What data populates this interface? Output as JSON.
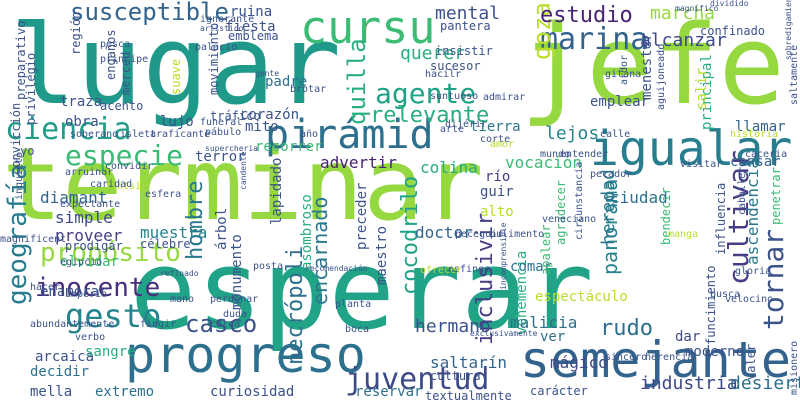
{
  "words": [
    {
      "text": "terminar",
      "color": "#95d840"
    },
    {
      "text": "esperar",
      "color": "#20a386"
    },
    {
      "text": "lugar",
      "color": "#1f9a8a"
    },
    {
      "text": "jefe",
      "color": "#95d840"
    },
    {
      "text": "semejante",
      "color": "#33638d"
    },
    {
      "text": "progreso",
      "color": "#2d708e"
    },
    {
      "text": "igualar",
      "color": "#287d8e"
    },
    {
      "text": "pirámid",
      "color": "#2d708e"
    },
    {
      "text": "cursu",
      "color": "#3cbb75"
    },
    {
      "text": "ciencia",
      "color": "#1f9e89"
    },
    {
      "text": "susceptible",
      "color": "#32648e"
    },
    {
      "text": "geografía",
      "color": "#287c8e"
    },
    {
      "text": "juventud",
      "color": "#3e4989"
    },
    {
      "text": "gesto",
      "color": "#25858e"
    },
    {
      "text": "propósito",
      "color": "#95d840"
    },
    {
      "text": "inocente",
      "color": "#472d7b"
    },
    {
      "text": "marina",
      "color": "#33638d"
    },
    {
      "text": "agente",
      "color": "#20a386"
    },
    {
      "text": "especie",
      "color": "#3cbb75"
    },
    {
      "text": "relevante",
      "color": "#29af7f"
    },
    {
      "text": "cultivar",
      "color": "#433e85"
    },
    {
      "text": "tornar",
      "color": "#3b528b"
    },
    {
      "text": "hombre",
      "color": "#2a788e"
    },
    {
      "text": "gozar",
      "color": "#b8de29"
    },
    {
      "text": "quilla",
      "color": "#29af7f"
    },
    {
      "text": "casco",
      "color": "#3b528b"
    },
    {
      "text": "estudio",
      "color": "#482475"
    },
    {
      "text": "inclusivir",
      "color": "#433e85"
    },
    {
      "text": "encarnado",
      "color": "#2a788e"
    },
    {
      "text": "cocodrilo",
      "color": "#20a386"
    },
    {
      "text": "necrópoli",
      "color": "#2d708e"
    },
    {
      "text": "rudo",
      "color": "#2d708e"
    },
    {
      "text": "panorama",
      "color": "#25858e"
    },
    {
      "text": "heredad",
      "color": "#2a788e"
    },
    {
      "text": "mental",
      "color": "#3b528b"
    },
    {
      "text": "querer",
      "color": "#27ad81"
    },
    {
      "text": "marcha",
      "color": "#95d840"
    },
    {
      "text": "alcanzar",
      "color": "#3e4989"
    },
    {
      "text": "lejos",
      "color": "#25858e"
    },
    {
      "text": "hermano",
      "color": "#3b528b"
    },
    {
      "text": "ascendencia",
      "color": "#2a788e"
    },
    {
      "text": "industria",
      "color": "#3e4989"
    },
    {
      "text": "desierto",
      "color": "#2d708e"
    },
    {
      "text": "saltarín",
      "color": "#32648e"
    },
    {
      "text": "mágico",
      "color": "#3e4989"
    },
    {
      "text": "vehemencia",
      "color": "#29af7f"
    },
    {
      "text": "malicia",
      "color": "#2d708e"
    },
    {
      "text": "espectáculo",
      "color": "#b8de29"
    },
    {
      "text": "doctor",
      "color": "#32648e"
    },
    {
      "text": "ciudad",
      "color": "#2d708e"
    },
    {
      "text": "diamant",
      "color": "#32648e"
    },
    {
      "text": "simple",
      "color": "#3e4989"
    },
    {
      "text": "proveer",
      "color": "#433e85"
    },
    {
      "text": "muestra",
      "color": "#25858e"
    },
    {
      "text": "colina",
      "color": "#27ad81"
    },
    {
      "text": "vocación",
      "color": "#3cbb75"
    },
    {
      "text": "advertir",
      "color": "#481f70"
    },
    {
      "text": "corazón",
      "color": "#3b528b"
    },
    {
      "text": "padre",
      "color": "#2d708e"
    },
    {
      "text": "lujo",
      "color": "#3b528b"
    },
    {
      "text": "obra",
      "color": "#3b528b"
    },
    {
      "text": "traza",
      "color": "#3b528b"
    },
    {
      "text": "terror",
      "color": "#3b528b"
    },
    {
      "text": "emplear",
      "color": "#3b528b"
    },
    {
      "text": "llamar",
      "color": "#32648e"
    },
    {
      "text": "cansar",
      "color": "#32648e"
    },
    {
      "text": "tierra",
      "color": "#2a788e"
    },
    {
      "text": "guir",
      "color": "#3b528b"
    },
    {
      "text": "río",
      "color": "#433e85"
    },
    {
      "text": "alto",
      "color": "#b8de29"
    },
    {
      "text": "preceder",
      "color": "#3b528b"
    },
    {
      "text": "maestro",
      "color": "#3b528b"
    },
    {
      "text": "comar",
      "color": "#2d708e"
    },
    {
      "text": "ver",
      "color": "#2d708e"
    },
    {
      "text": "dar",
      "color": "#3e4989"
    },
    {
      "text": "moderno",
      "color": "#3b528b"
    },
    {
      "text": "reservar",
      "color": "#2d708e"
    },
    {
      "text": "curiosidad",
      "color": "#3b528b"
    },
    {
      "text": "extremo",
      "color": "#2d708e"
    },
    {
      "text": "mella",
      "color": "#3b528b"
    },
    {
      "text": "decidir",
      "color": "#2d708e"
    },
    {
      "text": "arcaica",
      "color": "#3b528b"
    },
    {
      "text": "sangre",
      "color": "#27ad81"
    },
    {
      "text": "enamorar",
      "color": "#3b528b"
    },
    {
      "text": "olvidar",
      "color": "#3cbb75"
    },
    {
      "text": "monumento",
      "color": "#3b528b"
    },
    {
      "text": "árbol",
      "color": "#3b528b"
    },
    {
      "text": "lapidado",
      "color": "#3b528b"
    },
    {
      "text": "asombroso",
      "color": "#29af7f"
    },
    {
      "text": "recorrer",
      "color": "#3cbb75"
    },
    {
      "text": "mito",
      "color": "#3b528b"
    },
    {
      "text": "ruina",
      "color": "#3b528b"
    },
    {
      "text": "fiesta",
      "color": "#3b528b"
    },
    {
      "text": "emblema",
      "color": "#3b528b"
    },
    {
      "text": "insistir",
      "color": "#3b528b"
    },
    {
      "text": "sucesor",
      "color": "#3b528b"
    },
    {
      "text": "pantera",
      "color": "#3b528b"
    },
    {
      "text": "confinado",
      "color": "#3b528b"
    },
    {
      "text": "menester",
      "color": "#3b528b"
    },
    {
      "text": "principal",
      "color": "#29af7f"
    },
    {
      "text": "salir",
      "color": "#b8de29"
    },
    {
      "text": "región",
      "color": "#3b528b"
    },
    {
      "text": "privilegio",
      "color": "#3b528b"
    },
    {
      "text": "preparativo",
      "color": "#3b528b"
    },
    {
      "text": "merced",
      "color": "#3b528b"
    },
    {
      "text": "engaños",
      "color": "#3b528b"
    },
    {
      "text": "acento",
      "color": "#3b528b"
    },
    {
      "text": "tráfico",
      "color": "#3b528b"
    },
    {
      "text": "bendecir",
      "color": "#3cbb75"
    },
    {
      "text": "agradecer",
      "color": "#3cbb75"
    },
    {
      "text": "apalear",
      "color": "#3cbb75"
    },
    {
      "text": "penetrar",
      "color": "#3cbb75"
    },
    {
      "text": "influencia",
      "color": "#3b528b"
    },
    {
      "text": "funcimiento",
      "color": "#3b528b"
    },
    {
      "text": "valer",
      "color": "#3b528b"
    },
    {
      "text": "misionero",
      "color": "#3b528b"
    },
    {
      "text": "saltamente",
      "color": "#3b528b"
    },
    {
      "text": "convicción",
      "color": "#3b528b"
    },
    {
      "text": "yo",
      "color": "#3b528b"
    },
    {
      "text": "suave",
      "color": "#b8de29"
    },
    {
      "text": "movimiento",
      "color": "#3b528b"
    },
    {
      "text": "soberano",
      "color": "#3b528b"
    },
    {
      "text": "isleta",
      "color": "#3b528b"
    },
    {
      "text": "traficante",
      "color": "#3b528b"
    },
    {
      "text": "funeral",
      "color": "#3b528b"
    },
    {
      "text": "pábulo",
      "color": "#3b528b"
    },
    {
      "text": "supercheria",
      "color": "#3b528b"
    },
    {
      "text": "convidir",
      "color": "#3b528b"
    },
    {
      "text": "arruinar",
      "color": "#3b528b"
    },
    {
      "text": "fintsir",
      "color": "#b8de29"
    },
    {
      "text": "textualmente",
      "color": "#3b528b"
    },
    {
      "text": "carácter",
      "color": "#3b528b"
    },
    {
      "text": "cultura",
      "color": "#3b528b"
    },
    {
      "text": "historia",
      "color": "#b8de29"
    },
    {
      "text": "caceria",
      "color": "#3b528b"
    },
    {
      "text": "visitar",
      "color": "#3b528b"
    },
    {
      "text": "amor",
      "color": "#b8de29"
    },
    {
      "text": "mundo",
      "color": "#3b528b"
    },
    {
      "text": "pecador",
      "color": "#3b528b"
    },
    {
      "text": "calle",
      "color": "#3b528b"
    },
    {
      "text": "corte",
      "color": "#3b528b"
    },
    {
      "text": "esfera",
      "color": "#3b528b"
    },
    {
      "text": "expectante",
      "color": "#3b528b"
    },
    {
      "text": "prodigar",
      "color": "#3b528b"
    },
    {
      "text": "célebre",
      "color": "#3b528b"
    },
    {
      "text": "refinado",
      "color": "#3b528b"
    },
    {
      "text": "mano",
      "color": "#3b528b"
    },
    {
      "text": "perdonar",
      "color": "#3b528b"
    },
    {
      "text": "planta",
      "color": "#3b528b"
    },
    {
      "text": "boca",
      "color": "#3b528b"
    },
    {
      "text": "sincero",
      "color": "#3b528b"
    },
    {
      "text": "herencia",
      "color": "#3b528b"
    },
    {
      "text": "busca",
      "color": "#3b528b"
    },
    {
      "text": "gloria",
      "color": "#3b528b"
    },
    {
      "text": "manga",
      "color": "#b8de29"
    },
    {
      "text": "velocino",
      "color": "#3b528b"
    },
    {
      "text": "posta",
      "color": "#3b528b"
    },
    {
      "text": "recomendación",
      "color": "#3b528b"
    },
    {
      "text": "esfinge",
      "color": "#3b528b"
    },
    {
      "text": "ofrecer",
      "color": "#b8de29"
    },
    {
      "text": "pesca",
      "color": "#3b528b"
    },
    {
      "text": "principe",
      "color": "#3b528b"
    },
    {
      "text": "gente",
      "color": "#3b528b"
    },
    {
      "text": "brotar",
      "color": "#3b528b"
    },
    {
      "text": "hacilr",
      "color": "#3b528b"
    },
    {
      "text": "suntuoso",
      "color": "#3b528b"
    },
    {
      "text": "dijérir",
      "color": "#3b528b"
    },
    {
      "text": "gitana",
      "color": "#3b528b"
    },
    {
      "text": "admirar",
      "color": "#3b528b"
    },
    {
      "text": "ignorante",
      "color": "#3b528b"
    },
    {
      "text": "artístico",
      "color": "#3b528b"
    },
    {
      "text": "magnífico",
      "color": "#3b528b"
    },
    {
      "text": "dividido",
      "color": "#3b528b"
    },
    {
      "text": "sobredigamiento",
      "color": "#3b528b"
    },
    {
      "text": "aguijoneado",
      "color": "#3b528b"
    },
    {
      "text": "ardor",
      "color": "#3b528b"
    },
    {
      "text": "veneciano",
      "color": "#3b528b"
    },
    {
      "text": "entender",
      "color": "#3b528b"
    },
    {
      "text": "circunstancia",
      "color": "#3b528b"
    },
    {
      "text": "pulimento",
      "color": "#3b528b"
    },
    {
      "text": "caballero",
      "color": "#3b528b"
    },
    {
      "text": "cerca",
      "color": "#3b528b"
    },
    {
      "text": "duda",
      "color": "#3b528b"
    },
    {
      "text": "candente",
      "color": "#3b528b"
    },
    {
      "text": "egipcio",
      "color": "#3b528b"
    },
    {
      "text": "imperio",
      "color": "#3b528b"
    },
    {
      "text": "hacer",
      "color": "#3b528b"
    },
    {
      "text": "abundantemente",
      "color": "#3b528b"
    },
    {
      "text": "fingir",
      "color": "#3b528b"
    },
    {
      "text": "verbo",
      "color": "#3b528b"
    },
    {
      "text": "caridad",
      "color": "#3b528b"
    },
    {
      "text": "inquieto",
      "color": "#3b528b"
    },
    {
      "text": "magnificent",
      "color": "#3b528b"
    },
    {
      "text": "año",
      "color": "#3b528b"
    },
    {
      "text": "palacio",
      "color": "#3b528b"
    },
    {
      "text": "arte",
      "color": "#3b528b"
    },
    {
      "text": "incomprensible",
      "color": "#3b528b"
    },
    {
      "text": "exclusivamente",
      "color": "#3b528b"
    },
    {
      "text": "peceguir",
      "color": "#3b528b"
    }
  ]
}
